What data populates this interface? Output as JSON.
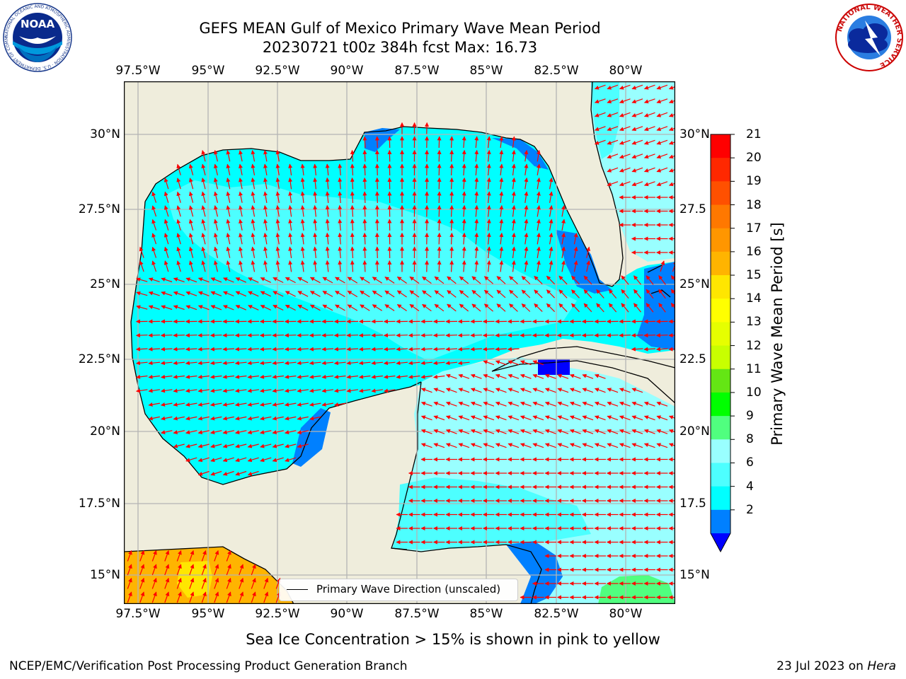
{
  "title": {
    "line1": "GEFS MEAN Gulf of Mexico Primary Wave Mean Period",
    "line2": "20230721 t00z 384h fcst   Max: 16.73"
  },
  "map": {
    "lon_labels": [
      "97.5°W",
      "95°W",
      "92.5°W",
      "90°W",
      "87.5°W",
      "85°W",
      "82.5°W",
      "80°W"
    ],
    "lat_labels_left": [
      "30°N",
      "27.5°N",
      "25°N",
      "22.5°N",
      "20°N",
      "17.5°N",
      "15°N"
    ],
    "lat_labels_right": [
      "30°N",
      "27.5",
      "25°N",
      "22.5",
      "20°N",
      "17.5",
      "15°N"
    ],
    "colors": {
      "land": "#efeddc",
      "coast": "#000000",
      "grid": "#b4b4b4",
      "arrow": "#ff0000"
    }
  },
  "legend": {
    "label": "Primary Wave Direction (unscaled)"
  },
  "colorbar": {
    "title": "Primary Wave Mean Period [s]",
    "labels": [
      "21",
      "20",
      "19",
      "18",
      "17",
      "16",
      "15",
      "14",
      "13",
      "12",
      "11",
      "10",
      "9",
      "8",
      "6",
      "4",
      "2"
    ],
    "colors": [
      "#ff0000",
      "#ff2800",
      "#ff5000",
      "#ff7800",
      "#ff9600",
      "#ffb400",
      "#ffe600",
      "#ffff00",
      "#e6ff00",
      "#c8ff00",
      "#64e614",
      "#00ff00",
      "#50ff7f",
      "#99ffff",
      "#4dffff",
      "#00ffff",
      "#0080ff",
      "#0000ff"
    ]
  },
  "footer": {
    "note": "Sea Ice Concentration > 15% is shown in pink to yellow",
    "credit": "NCEP/EMC/Verification Post Processing Product Generation Branch",
    "date": "23 Jul 2023 on ",
    "host": "Hera"
  },
  "logos": {
    "noaa": {
      "text": "NOAA",
      "ring": "NATIONAL OCEANIC AND ATMOSPHERIC ADMINISTRATION · U.S. DEPARTMENT OF COMMERCE"
    },
    "nws": {
      "ring": "NATIONAL WEATHER SERVICE"
    }
  }
}
